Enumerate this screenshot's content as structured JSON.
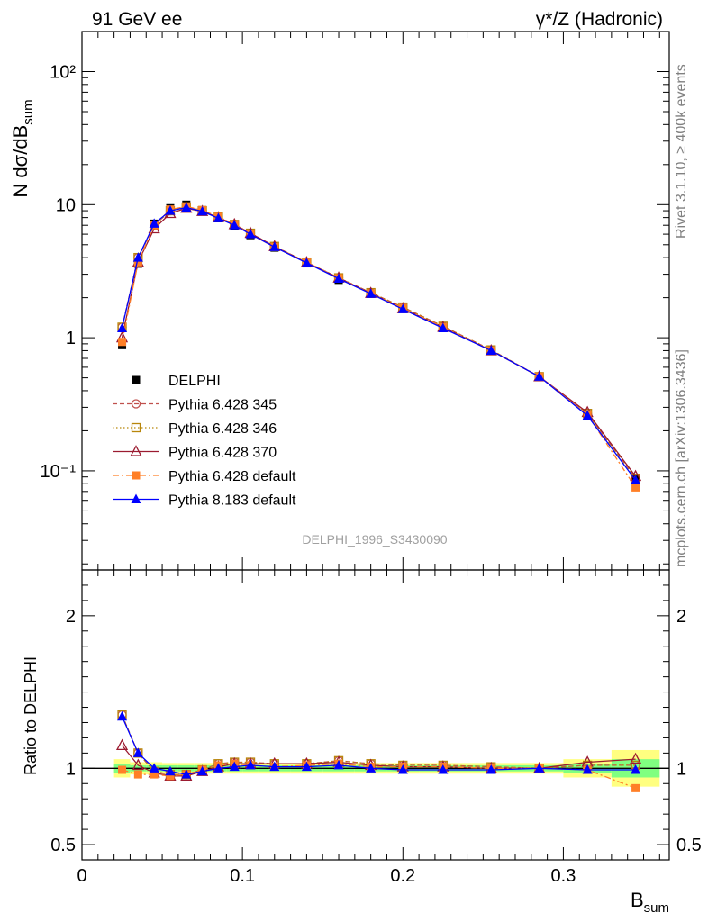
{
  "header": {
    "left": "91 GeV ee",
    "right": "γ*/Z (Hadronic)"
  },
  "side_text": {
    "top": "Rivet 3.1.10, ≥ 400k events",
    "bottom": "mcplots.cern.ch [arXiv:1306.3436]"
  },
  "analysis_id": "DELPHI_1996_S3430090",
  "chart_data": [
    {
      "type": "line",
      "panel": "main",
      "ylabel": "N dσ/dB_sum",
      "yscale": "log",
      "ylim": [
        0.018,
        200
      ],
      "xlim": [
        0,
        0.366
      ],
      "y_ticks": [
        {
          "value": 100,
          "label": "10²"
        },
        {
          "value": 10,
          "label": "10"
        },
        {
          "value": 1,
          "label": "1"
        },
        {
          "value": 0.1,
          "label": "10⁻¹"
        }
      ],
      "x": [
        0.025,
        0.035,
        0.045,
        0.055,
        0.065,
        0.075,
        0.085,
        0.095,
        0.105,
        0.12,
        0.14,
        0.16,
        0.18,
        0.2,
        0.225,
        0.255,
        0.285,
        0.315,
        0.345
      ],
      "series": [
        {
          "name": "DELPHI",
          "color": "#000000",
          "marker": "square",
          "line": "none",
          "values": [
            0.88,
            3.6,
            7.2,
            9.4,
            10.0,
            9.1,
            7.9,
            6.9,
            5.9,
            4.75,
            3.62,
            2.72,
            2.14,
            1.65,
            1.19,
            0.8,
            0.51,
            0.265,
            0.086
          ]
        },
        {
          "name": "Pythia 6.428 345",
          "color": "#c0504d",
          "marker": "circle-open",
          "line": "dashed",
          "values": [
            1.2,
            4.0,
            7.0,
            9.0,
            9.6,
            9.0,
            8.1,
            7.1,
            6.1,
            4.85,
            3.7,
            2.82,
            2.18,
            1.7,
            1.22,
            0.81,
            0.51,
            0.27,
            0.088
          ]
        },
        {
          "name": "Pythia 6.428 346",
          "color": "#b8860b",
          "marker": "square-open",
          "line": "dotted",
          "values": [
            1.2,
            4.0,
            7.0,
            9.0,
            9.6,
            9.0,
            8.1,
            7.1,
            6.1,
            4.85,
            3.7,
            2.82,
            2.18,
            1.7,
            1.22,
            0.81,
            0.51,
            0.27,
            0.088
          ]
        },
        {
          "name": "Pythia 6.428 370",
          "color": "#9b1b30",
          "marker": "triangle-open",
          "line": "solid",
          "values": [
            1.0,
            3.7,
            6.6,
            8.6,
            9.4,
            8.9,
            8.0,
            7.1,
            6.1,
            4.85,
            3.68,
            2.82,
            2.16,
            1.66,
            1.2,
            0.8,
            0.51,
            0.275,
            0.091
          ]
        },
        {
          "name": "Pythia 6.428 default",
          "color": "#ff7f27",
          "marker": "square",
          "line": "dashdot",
          "values": [
            0.93,
            3.7,
            7.0,
            9.2,
            9.7,
            9.1,
            8.1,
            7.1,
            6.0,
            4.8,
            3.7,
            2.8,
            2.15,
            1.67,
            1.2,
            0.8,
            0.51,
            0.265,
            0.075
          ]
        },
        {
          "name": "Pythia 8.183 default",
          "color": "#0000ff",
          "marker": "triangle",
          "line": "solid",
          "values": [
            1.18,
            4.0,
            7.2,
            9.0,
            9.5,
            8.9,
            7.9,
            7.0,
            6.0,
            4.8,
            3.65,
            2.78,
            2.14,
            1.64,
            1.18,
            0.8,
            0.51,
            0.26,
            0.085
          ]
        }
      ]
    },
    {
      "type": "line",
      "panel": "ratio",
      "ylabel": "Ratio to DELPHI",
      "xlabel": "B_sum",
      "ylim": [
        0.4,
        2.3
      ],
      "xlim": [
        0,
        0.366
      ],
      "y_ticks": [
        {
          "value": 2,
          "label": "2"
        },
        {
          "value": 1,
          "label": "1"
        },
        {
          "value": 0.5,
          "label": "0.5"
        }
      ],
      "x_ticks": [
        {
          "value": 0,
          "label": "0"
        },
        {
          "value": 0.1,
          "label": "0.1"
        },
        {
          "value": 0.2,
          "label": "0.2"
        },
        {
          "value": 0.3,
          "label": "0.3"
        }
      ],
      "x": [
        0.025,
        0.035,
        0.045,
        0.055,
        0.065,
        0.075,
        0.085,
        0.095,
        0.105,
        0.12,
        0.14,
        0.16,
        0.18,
        0.2,
        0.225,
        0.255,
        0.285,
        0.315,
        0.345
      ],
      "bands": {
        "x_edges": [
          0.02,
          0.03,
          0.04,
          0.05,
          0.06,
          0.07,
          0.08,
          0.09,
          0.1,
          0.11,
          0.13,
          0.15,
          0.17,
          0.19,
          0.21,
          0.24,
          0.27,
          0.3,
          0.33,
          0.36
        ],
        "yellow": [
          0.06,
          0.04,
          0.04,
          0.035,
          0.035,
          0.035,
          0.035,
          0.035,
          0.035,
          0.035,
          0.035,
          0.035,
          0.035,
          0.035,
          0.035,
          0.035,
          0.035,
          0.06,
          0.12
        ],
        "green": [
          0.03,
          0.02,
          0.02,
          0.02,
          0.02,
          0.02,
          0.02,
          0.02,
          0.02,
          0.02,
          0.02,
          0.02,
          0.02,
          0.02,
          0.02,
          0.02,
          0.02,
          0.03,
          0.06
        ]
      },
      "series": [
        {
          "name": "Pythia 6.428 345",
          "color": "#c0504d",
          "marker": "circle-open",
          "line": "dashed",
          "values": [
            1.35,
            1.1,
            0.98,
            0.96,
            0.96,
            0.99,
            1.03,
            1.04,
            1.04,
            1.03,
            1.03,
            1.05,
            1.03,
            1.02,
            1.02,
            1.01,
            1.0,
            1.02,
            1.02
          ]
        },
        {
          "name": "Pythia 6.428 346",
          "color": "#b8860b",
          "marker": "square-open",
          "line": "dotted",
          "values": [
            1.35,
            1.1,
            0.98,
            0.96,
            0.96,
            0.99,
            1.03,
            1.04,
            1.04,
            1.03,
            1.03,
            1.05,
            1.03,
            1.02,
            1.02,
            1.01,
            1.0,
            1.02,
            1.02
          ]
        },
        {
          "name": "Pythia 6.428 370",
          "color": "#9b1b30",
          "marker": "triangle-open",
          "line": "solid",
          "values": [
            1.15,
            1.02,
            0.97,
            0.95,
            0.95,
            0.98,
            1.01,
            1.03,
            1.03,
            1.03,
            1.03,
            1.04,
            1.02,
            1.01,
            1.01,
            1.0,
            1.0,
            1.04,
            1.06
          ]
        },
        {
          "name": "Pythia 6.428 default",
          "color": "#ff7f27",
          "marker": "square",
          "line": "dashdot",
          "values": [
            0.99,
            0.96,
            0.96,
            0.95,
            0.96,
            0.99,
            1.02,
            1.03,
            1.02,
            1.01,
            1.02,
            1.03,
            1.01,
            1.01,
            1.01,
            1.0,
            1.0,
            0.99,
            0.87
          ]
        },
        {
          "name": "Pythia 8.183 default",
          "color": "#0000ff",
          "marker": "triangle",
          "line": "solid",
          "values": [
            1.34,
            1.1,
            1.0,
            0.98,
            0.96,
            0.98,
            1.0,
            1.01,
            1.02,
            1.01,
            1.01,
            1.02,
            1.0,
            0.99,
            0.99,
            0.99,
            1.0,
            0.99,
            0.99
          ]
        }
      ]
    }
  ]
}
